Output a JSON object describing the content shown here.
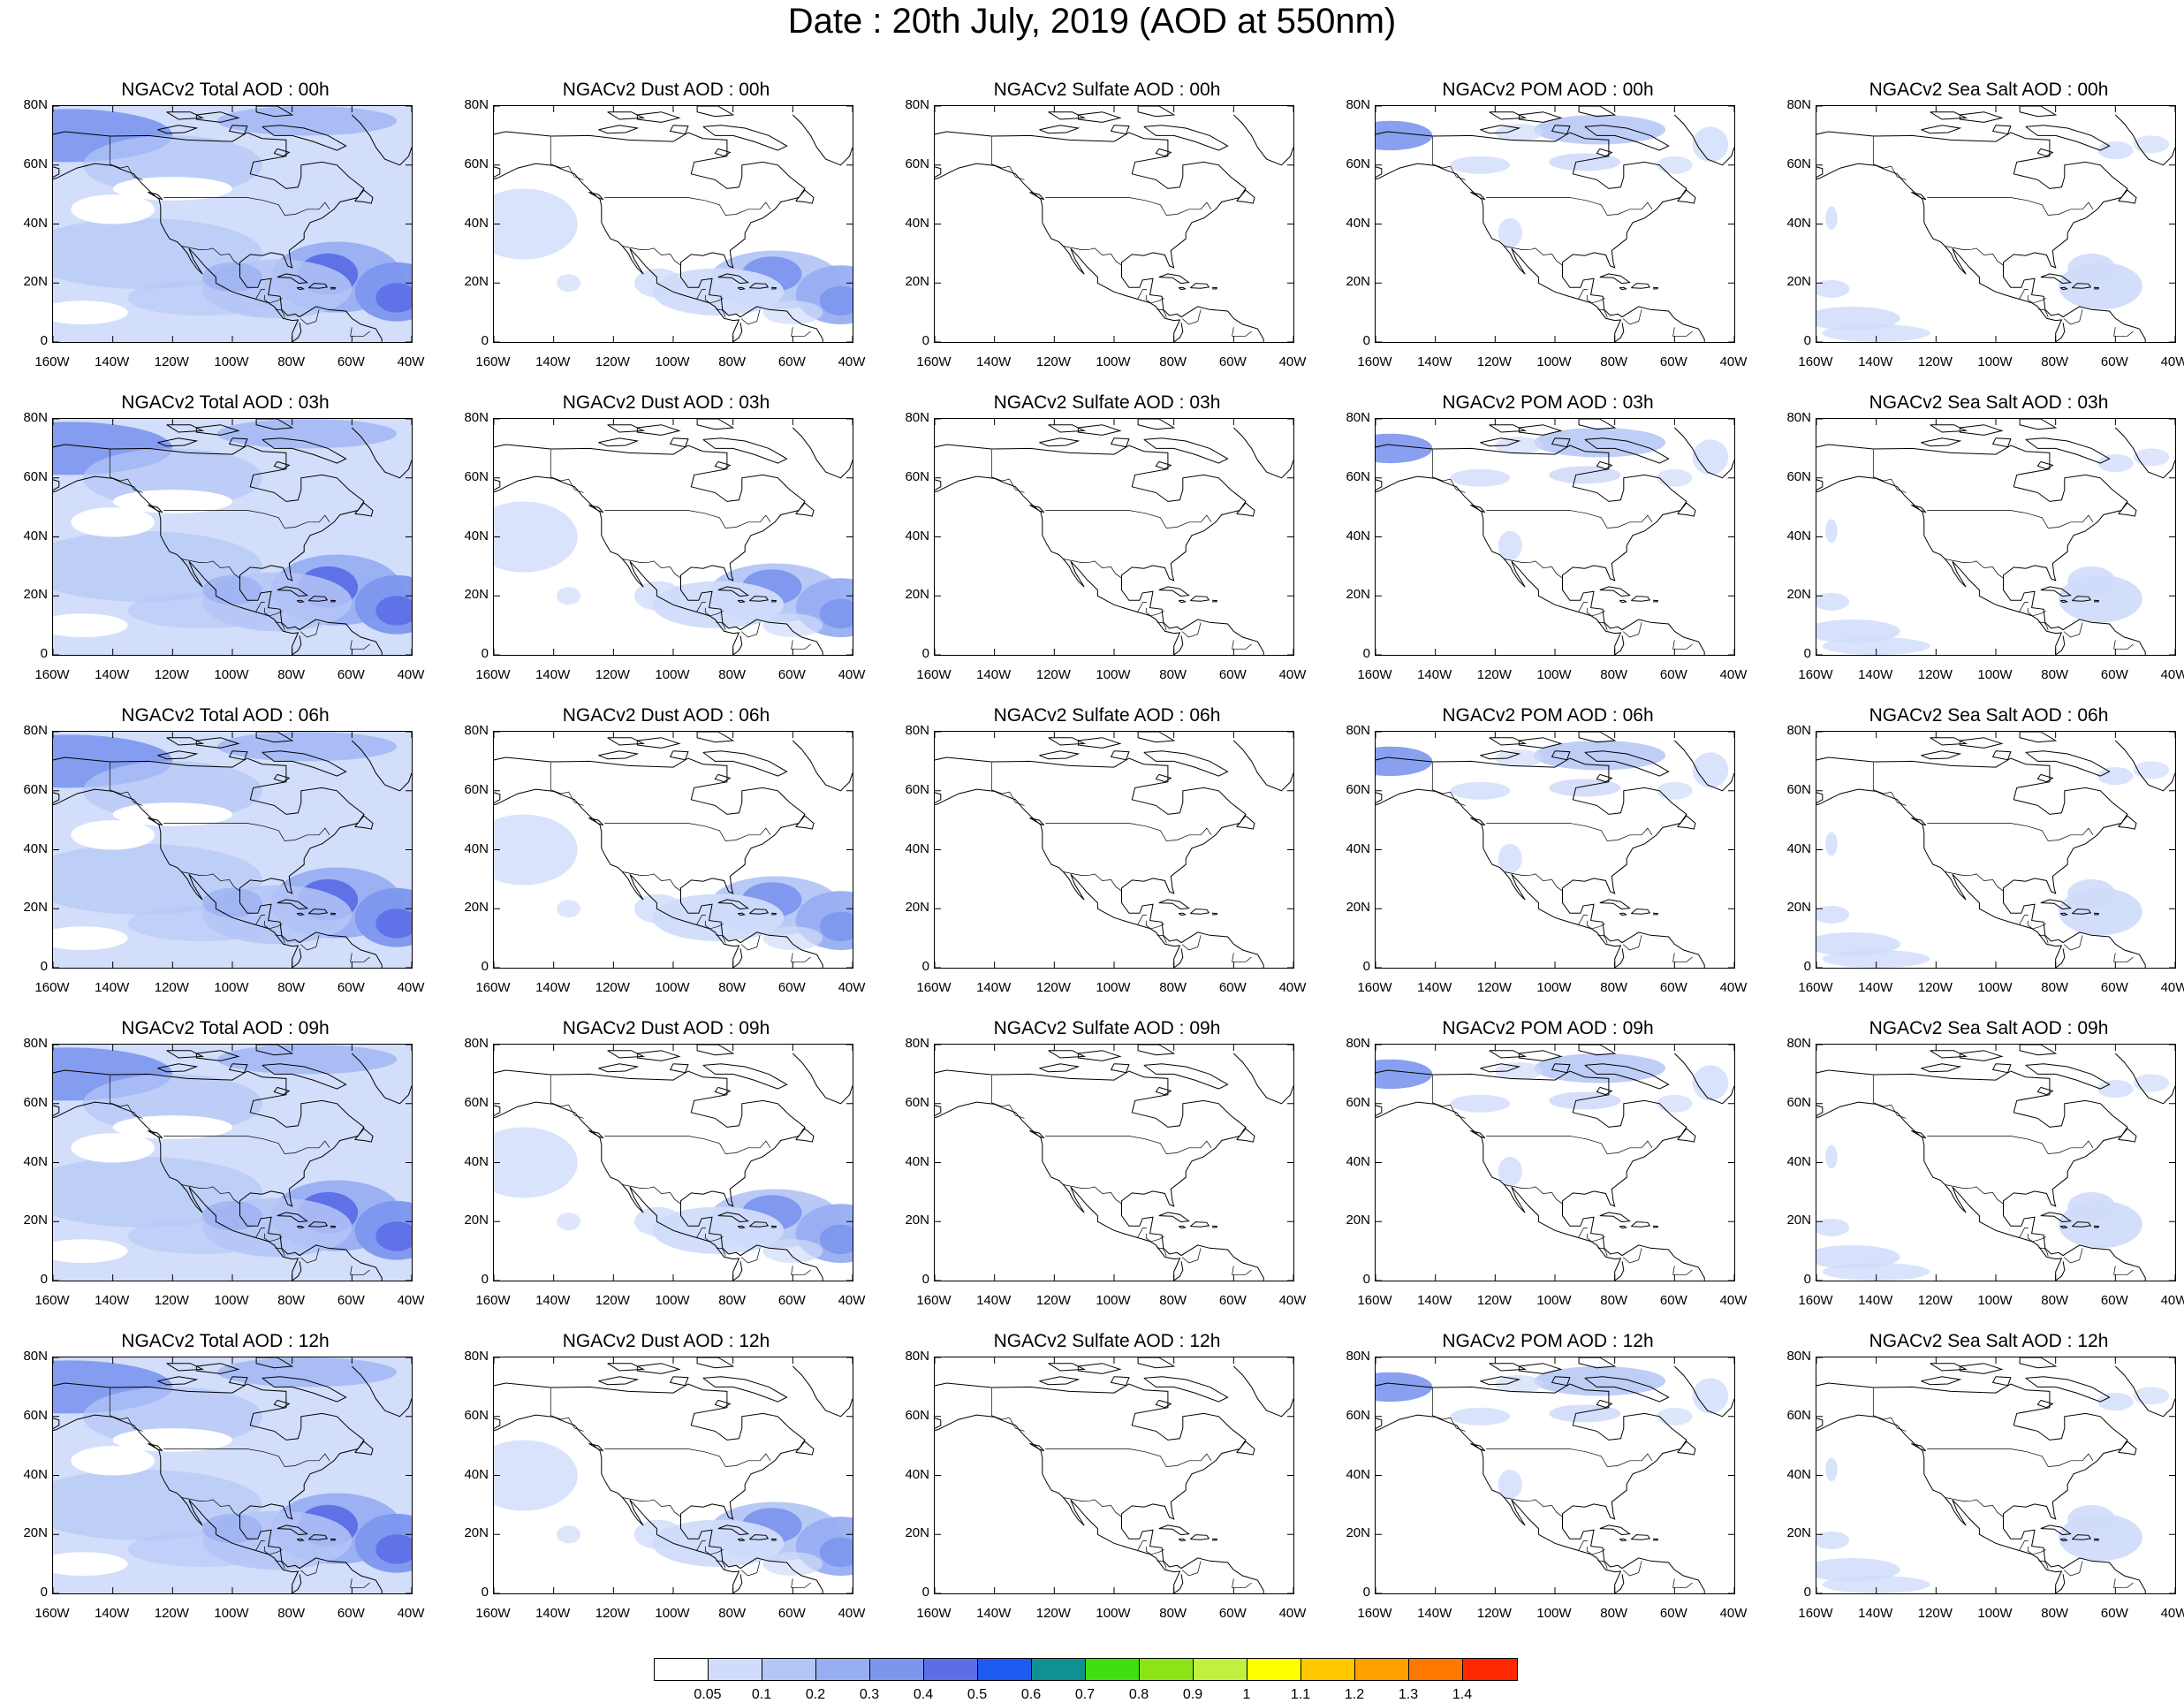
{
  "figure": {
    "title": "Date : 20th July, 2019 (AOD at 550nm)",
    "lat_ticks": [
      "80N",
      "60N",
      "40N",
      "20N",
      "0"
    ],
    "lon_ticks": [
      "160W",
      "140W",
      "120W",
      "100W",
      "80W",
      "60W",
      "40W"
    ],
    "lon_range": [
      -160,
      -40
    ],
    "lat_range": [
      0,
      80
    ]
  },
  "rows": [
    {
      "hour": "00h",
      "panels": [
        {
          "title": "NGACv2 Total AOD : 00h",
          "species": "total"
        },
        {
          "title": "NGACv2 Dust AOD : 00h",
          "species": "dust"
        },
        {
          "title": "NGACv2 Sulfate AOD : 00h",
          "species": "sulfate"
        },
        {
          "title": "NGACv2 POM AOD : 00h",
          "species": "pom"
        },
        {
          "title": "NGACv2 Sea Salt AOD : 00h",
          "species": "seasalt"
        }
      ]
    },
    {
      "hour": "03h",
      "panels": [
        {
          "title": "NGACv2 Total AOD : 03h",
          "species": "total"
        },
        {
          "title": "NGACv2 Dust AOD : 03h",
          "species": "dust"
        },
        {
          "title": "NGACv2 Sulfate AOD : 03h",
          "species": "sulfate"
        },
        {
          "title": "NGACv2 POM AOD : 03h",
          "species": "pom"
        },
        {
          "title": "NGACv2 Sea Salt AOD : 03h",
          "species": "seasalt"
        }
      ]
    },
    {
      "hour": "06h",
      "panels": [
        {
          "title": "NGACv2 Total AOD : 06h",
          "species": "total"
        },
        {
          "title": "NGACv2 Dust AOD : 06h",
          "species": "dust"
        },
        {
          "title": "NGACv2 Sulfate AOD : 06h",
          "species": "sulfate"
        },
        {
          "title": "NGACv2 POM AOD : 06h",
          "species": "pom"
        },
        {
          "title": "NGACv2 Sea Salt AOD : 06h",
          "species": "seasalt"
        }
      ]
    },
    {
      "hour": "09h",
      "panels": [
        {
          "title": "NGACv2 Total AOD : 09h",
          "species": "total"
        },
        {
          "title": "NGACv2 Dust AOD : 09h",
          "species": "dust"
        },
        {
          "title": "NGACv2 Sulfate AOD : 09h",
          "species": "sulfate"
        },
        {
          "title": "NGACv2 POM AOD : 09h",
          "species": "pom"
        },
        {
          "title": "NGACv2 Sea Salt  AOD : 09h",
          "species": "seasalt"
        }
      ]
    },
    {
      "hour": "12h",
      "panels": [
        {
          "title": "NGACv2 Total AOD  : 12h",
          "species": "total"
        },
        {
          "title": "NGACv2 Dust AOD : 12h",
          "species": "dust"
        },
        {
          "title": "NGACv2 Sulfate AOD : 12h",
          "species": "sulfate"
        },
        {
          "title": "NGACv2 POM  AOD : 12h",
          "species": "pom"
        },
        {
          "title": "NGACv2 Sea Salt  AOD : 12h",
          "species": "seasalt"
        }
      ]
    }
  ],
  "colorbar": {
    "labels": [
      "0.05",
      "0.1",
      "0.2",
      "0.3",
      "0.4",
      "0.5",
      "0.6",
      "0.7",
      "0.8",
      "0.9",
      "1",
      "1.1",
      "1.2",
      "1.3",
      "1.4"
    ],
    "colors": [
      "#ffffff",
      "#d0dcfa",
      "#b4c6f6",
      "#98aef2",
      "#7c96ee",
      "#5c6ee6",
      "#1e5af0",
      "#109090",
      "#40e010",
      "#8ce418",
      "#c0f040",
      "#ffff00",
      "#ffc800",
      "#ffa000",
      "#ff7800",
      "#ff2800"
    ]
  }
}
